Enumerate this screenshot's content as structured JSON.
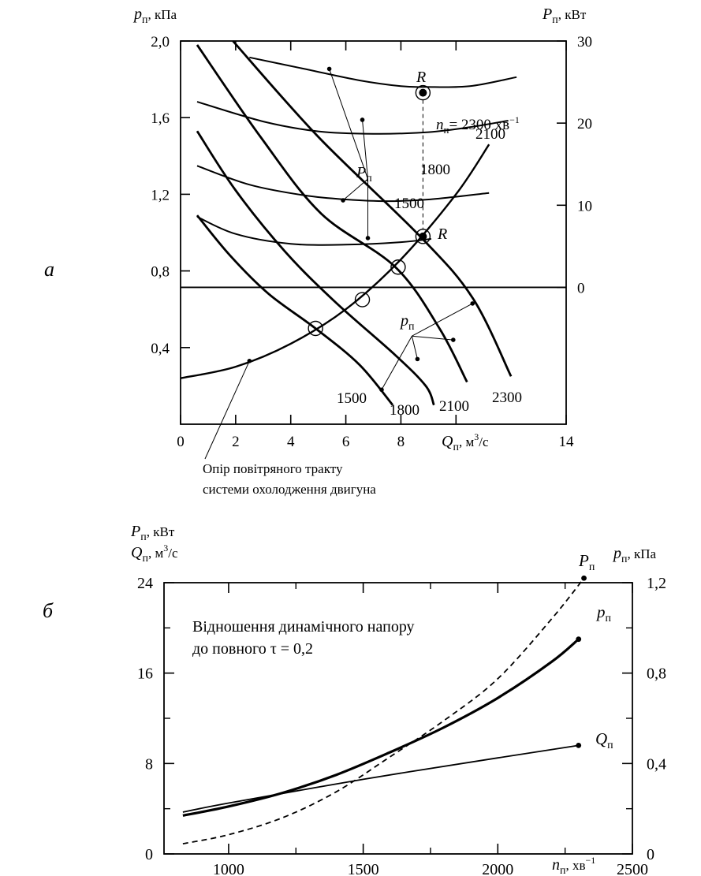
{
  "panels": {
    "a": "а",
    "b": "б"
  },
  "chart_data": [
    {
      "type": "line",
      "panel": "а",
      "left_axis_label": {
        "sym": "p",
        "sub": "п",
        "unit": ", кПа"
      },
      "right_axis_label": {
        "sym": "P",
        "sub": "п",
        "unit": ", кВт"
      },
      "x_axis_label": {
        "sym": "Q",
        "sub": "п",
        "unit": ", м",
        "pow": "3",
        "tail": "/с"
      },
      "x_ticks": [
        "0",
        "2",
        "4",
        "6",
        "8",
        "",
        "14"
      ],
      "x_tick_values": [
        0,
        2,
        4,
        6,
        8,
        10,
        14
      ],
      "xlim": [
        0,
        14
      ],
      "y_left_ticks": [
        "0,4",
        "0,8",
        "1,2",
        "1,6",
        "2,0"
      ],
      "y_left_values": [
        0.4,
        0.8,
        1.2,
        1.6,
        2.0
      ],
      "y_left_lim": [
        0,
        2.0
      ],
      "y_right_ticks": [
        "0",
        "10",
        "20",
        "30"
      ],
      "y_right_values": [
        0,
        10,
        20,
        30
      ],
      "y_right_lim": [
        -16.6667,
        30
      ],
      "speed_label_prefix": {
        "sym": "n",
        "sub": "п",
        "eq": "= 2300 хв",
        "pow": "−1"
      },
      "power_label": {
        "sym": "P",
        "sub": "п"
      },
      "pressure_label": {
        "sym": "p",
        "sub": "п"
      },
      "point_R": "R",
      "resistance_caption": [
        "Опір повітряного тракту",
        "системи охолодження двигуна"
      ],
      "pressure_series": [
        {
          "name": "1500",
          "x": [
            0.6,
            1.8,
            3.2,
            4.9,
            6.5,
            7.7
          ],
          "y": [
            1.09,
            0.88,
            0.68,
            0.5,
            0.31,
            0.1
          ]
        },
        {
          "name": "1800",
          "x": [
            0.6,
            2.0,
            3.8,
            5.6,
            7.8,
            8.9,
            9.2
          ],
          "y": [
            1.53,
            1.22,
            0.9,
            0.64,
            0.36,
            0.2,
            0.1
          ]
        },
        {
          "name": "2100",
          "x": [
            0.6,
            2.9,
            5.1,
            7.8,
            9.4,
            10.4
          ],
          "y": [
            1.98,
            1.5,
            1.1,
            0.82,
            0.5,
            0.22
          ]
        },
        {
          "name": "2300",
          "x": [
            1.9,
            5.0,
            8.7,
            10.6,
            12.0
          ],
          "y": [
            2.0,
            1.5,
            0.98,
            0.66,
            0.25
          ]
        }
      ],
      "power_series": [
        {
          "name": "1500",
          "x": [
            0.6,
            2.0,
            4.0,
            6.0,
            8.0,
            9.1
          ],
          "y": [
            8.6,
            6.5,
            5.3,
            5.2,
            5.5,
            5.9
          ]
        },
        {
          "name": "1800",
          "x": [
            0.6,
            2.5,
            4.5,
            6.0,
            7.5,
            9.0,
            11.2
          ],
          "y": [
            14.8,
            12.5,
            11.2,
            10.7,
            10.5,
            10.7,
            11.5
          ]
        },
        {
          "name": "2100",
          "x": [
            0.6,
            3.0,
            5.0,
            7.0,
            9.0,
            10.5,
            11.9
          ],
          "y": [
            22.6,
            20.2,
            19.0,
            18.7,
            18.9,
            19.5,
            20.3
          ]
        },
        {
          "name": "2300",
          "x": [
            2.5,
            4.5,
            6.5,
            8.0,
            8.9,
            10.5,
            12.2
          ],
          "y": [
            28.0,
            26.6,
            25.2,
            24.5,
            24.4,
            24.5,
            25.6
          ]
        }
      ],
      "resistance_curve": {
        "x": [
          0.0,
          2.0,
          4.0,
          6.0,
          8.0,
          10.0,
          11.2
        ],
        "y": [
          0.24,
          0.3,
          0.42,
          0.6,
          0.86,
          1.2,
          1.46
        ]
      },
      "operating_points": [
        {
          "x": 4.9,
          "y": 0.5
        },
        {
          "x": 6.6,
          "y": 0.65
        },
        {
          "x": 7.9,
          "y": 0.82
        },
        {
          "x": 8.8,
          "y": 0.98
        }
      ],
      "R_power_point": {
        "x": 8.8,
        "y": 23.7
      },
      "series_labels_pressure": [
        "1500",
        "1800",
        "2100",
        "2300"
      ],
      "series_labels_power": [
        "1500",
        "1800",
        "2100"
      ]
    },
    {
      "type": "line",
      "panel": "б",
      "left_axis_label": [
        {
          "sym": "P",
          "sub": "п",
          "unit": ", кВт"
        },
        {
          "sym": "Q",
          "sub": "п",
          "unit": ", м",
          "pow": "3",
          "tail": "/с"
        }
      ],
      "right_axis_label": {
        "sym": "p",
        "sub": "п",
        "unit": ", кПа"
      },
      "x_axis_label": {
        "sym": "n",
        "sub": "п",
        "unit": ", хв",
        "pow": "−1"
      },
      "x_ticks": [
        "1000",
        "1500",
        "2000",
        "2500"
      ],
      "x_tick_values": [
        1000,
        1500,
        2000,
        2500
      ],
      "xlim": [
        760,
        2500
      ],
      "y_left_ticks": [
        "0",
        "8",
        "16",
        "24"
      ],
      "y_left_values": [
        0,
        8,
        16,
        24
      ],
      "y_left_lim": [
        0,
        24
      ],
      "y_right_ticks": [
        "0",
        "0,4",
        "0,8",
        "1,2"
      ],
      "y_right_values": [
        0,
        0.4,
        0.8,
        1.2
      ],
      "y_right_lim": [
        0,
        1.2
      ],
      "annotation": [
        "Відношення динамічного напору",
        "до повного τ = 0,2"
      ],
      "series": [
        {
          "name": "P",
          "sub": "п",
          "style": "dashed",
          "x": [
            830,
            1000,
            1200,
            1400,
            1600,
            1800,
            2000,
            2200,
            2320
          ],
          "y": [
            0.9,
            1.7,
            3.2,
            5.5,
            8.6,
            11.8,
            15.5,
            20.8,
            24.4
          ]
        },
        {
          "name": "p",
          "sub": "п",
          "style": "thick",
          "x": [
            830,
            1000,
            1200,
            1400,
            1600,
            1800,
            2000,
            2200,
            2300
          ],
          "y": [
            0.17,
            0.21,
            0.27,
            0.35,
            0.45,
            0.56,
            0.69,
            0.85,
            0.95
          ]
        },
        {
          "name": "Q",
          "sub": "п",
          "style": "thin",
          "x": [
            830,
            1000,
            1500,
            2000,
            2300
          ],
          "y": [
            3.7,
            4.5,
            6.6,
            8.5,
            9.6
          ]
        }
      ]
    }
  ]
}
